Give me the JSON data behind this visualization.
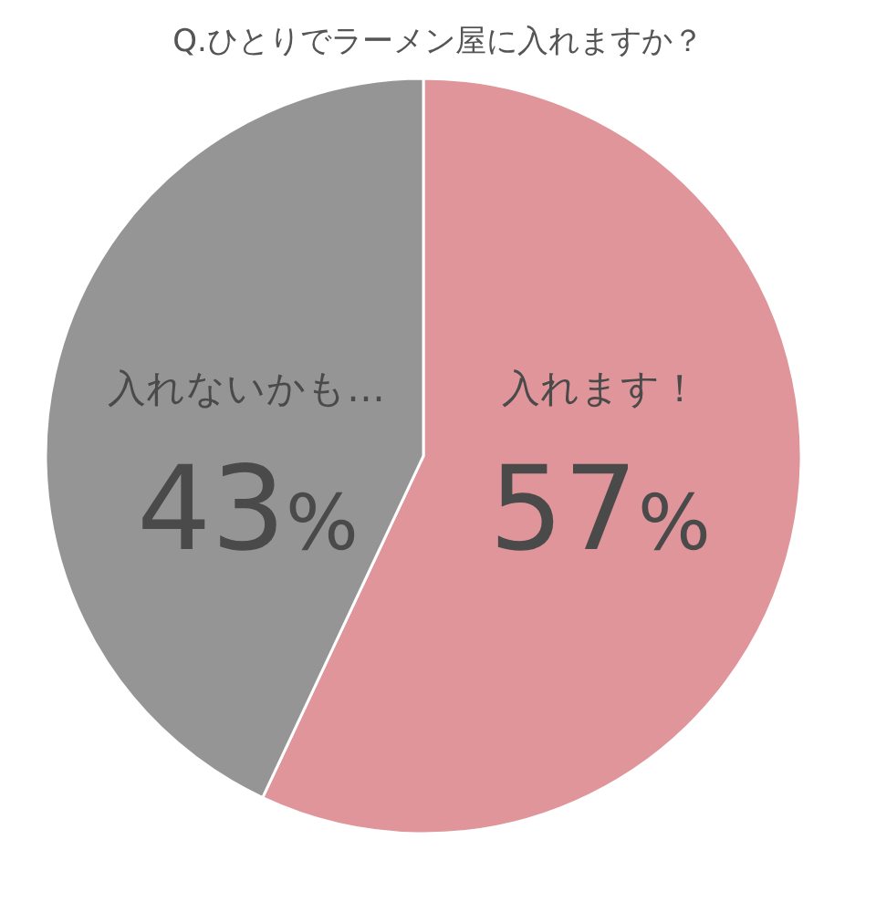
{
  "chart_data": {
    "type": "pie",
    "title": "Q.ひとりでラーメン屋に入れますか？",
    "categories": [
      "入れます！",
      "入れないかも…"
    ],
    "values": [
      57,
      43
    ],
    "colors": [
      "#df959a",
      "#959595"
    ],
    "value_labels": [
      "57%",
      "43%"
    ]
  }
}
